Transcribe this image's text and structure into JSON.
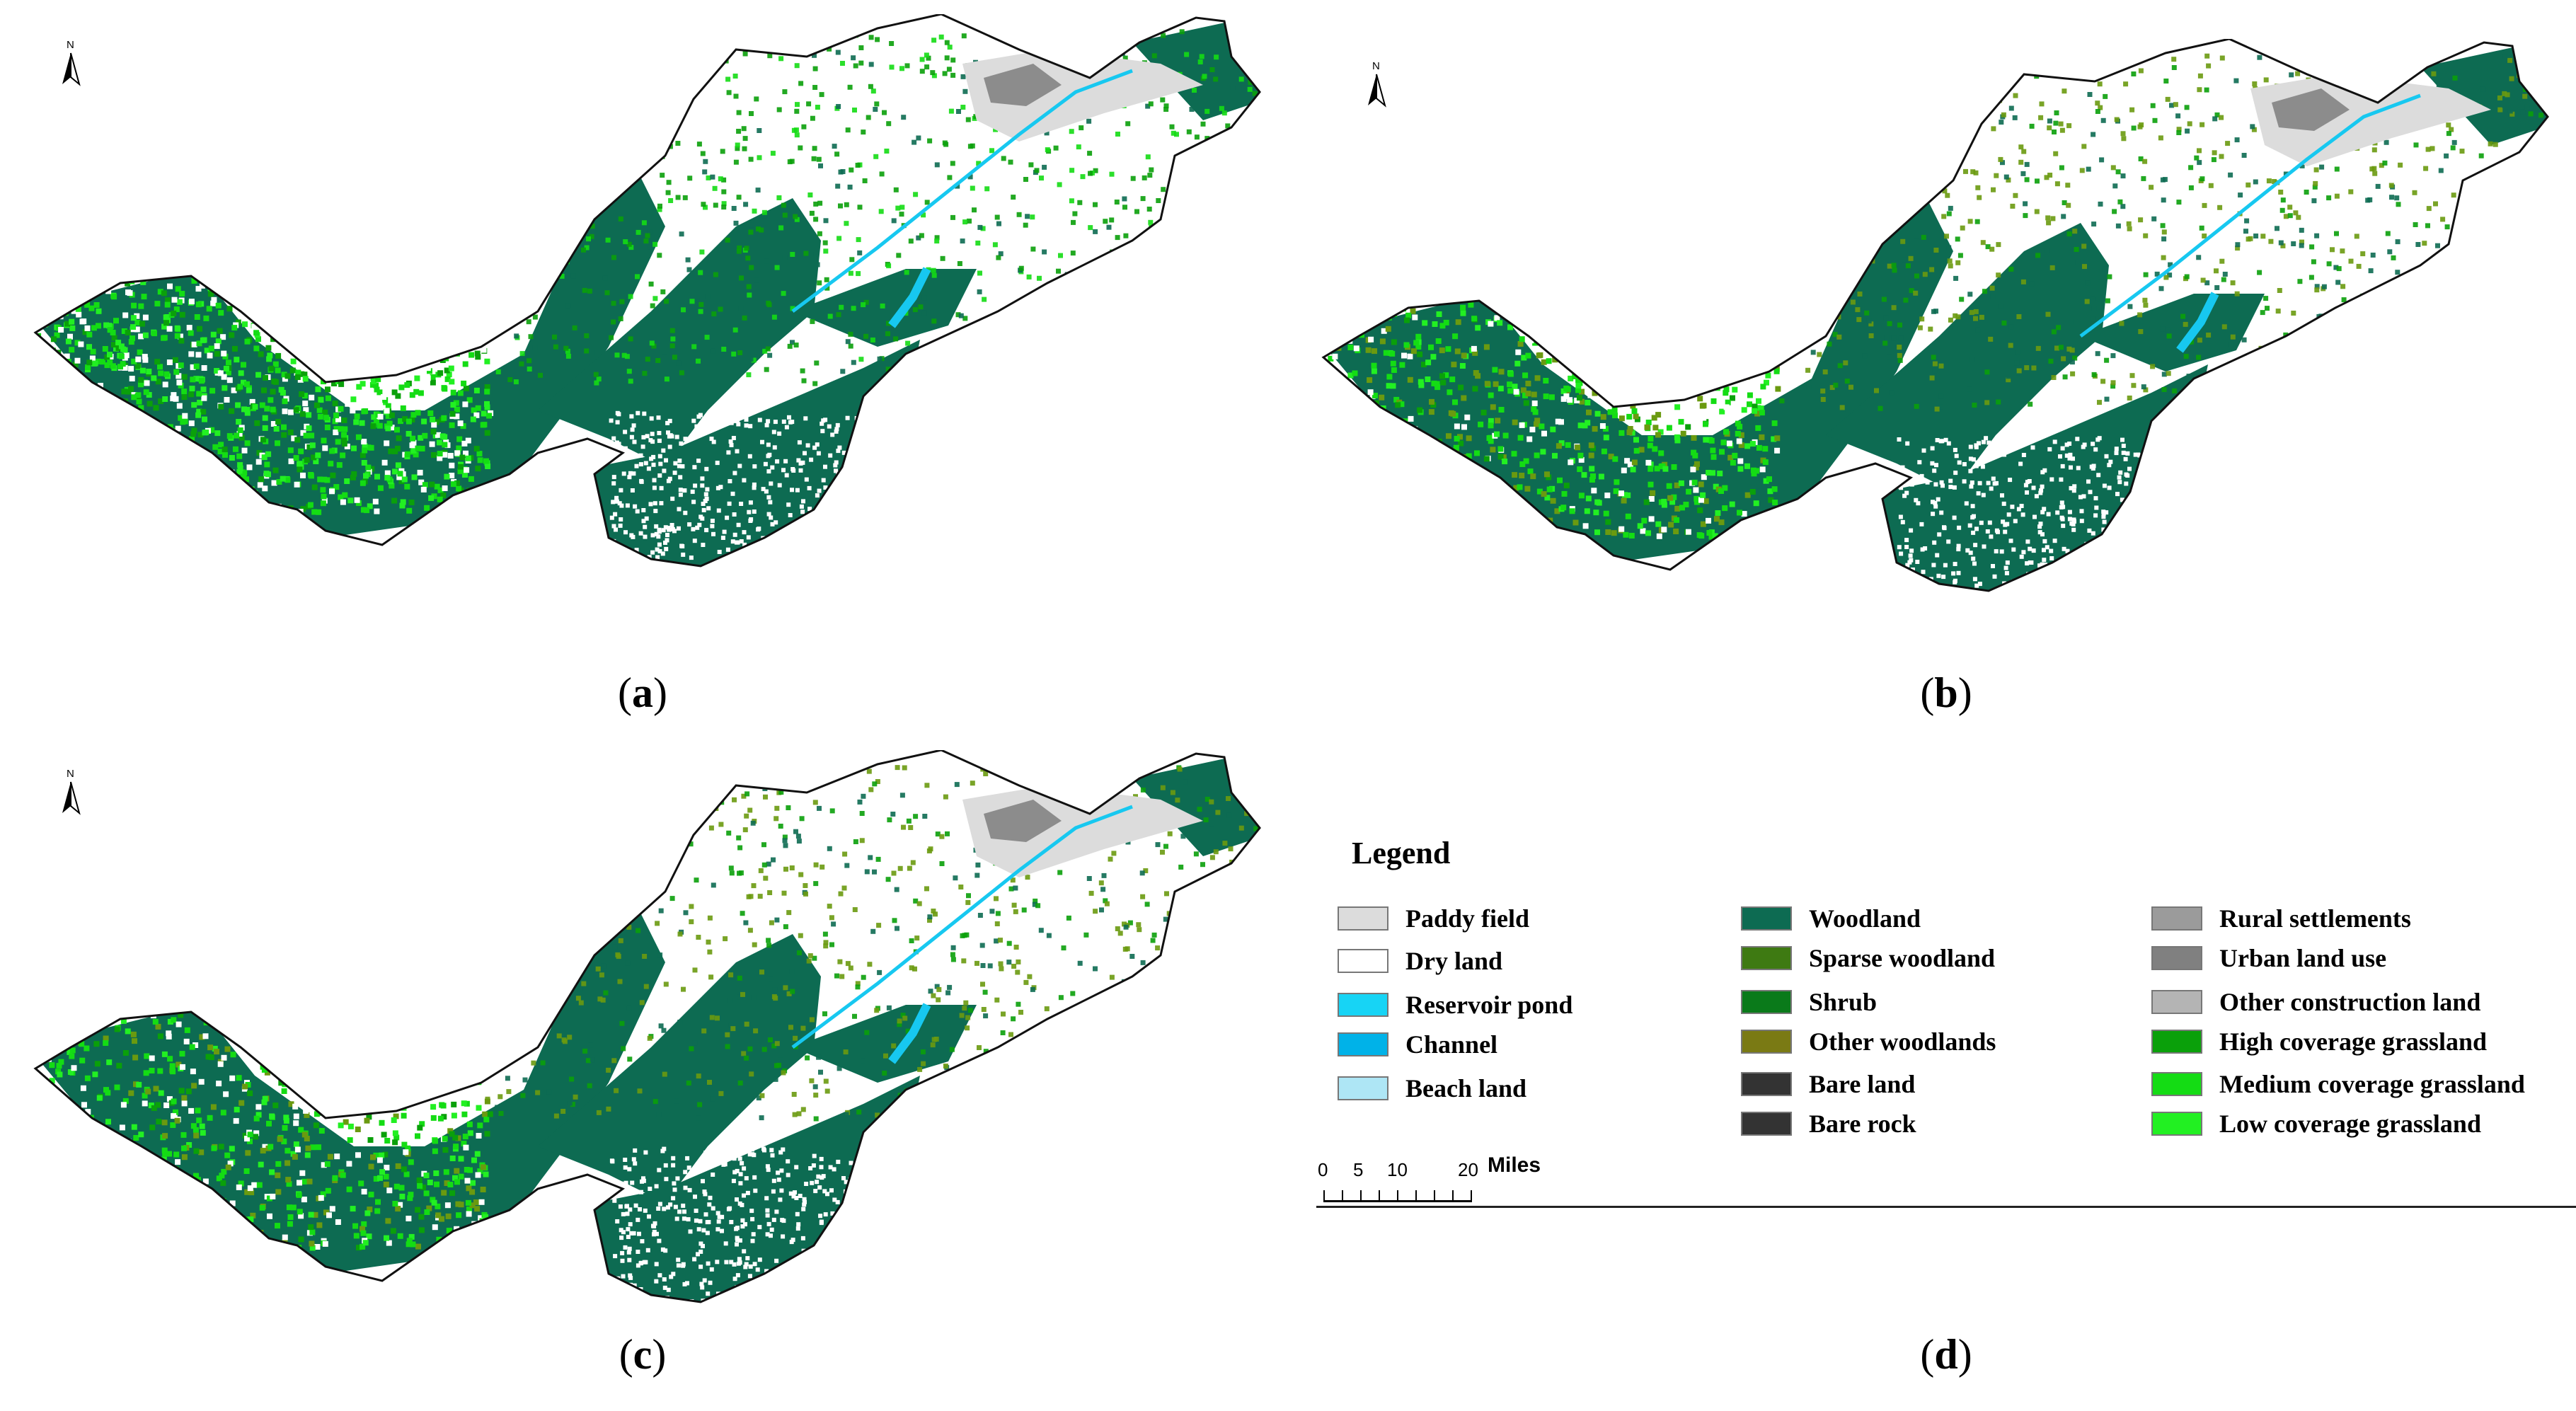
{
  "figure": {
    "panels": [
      {
        "id": "a",
        "caption_letter": "a",
        "variant": "a"
      },
      {
        "id": "b",
        "caption_letter": "b",
        "variant": "b"
      },
      {
        "id": "c",
        "caption_letter": "c",
        "variant": "c"
      }
    ],
    "legend_caption_letter": "d",
    "north_label": "N"
  },
  "legend": {
    "title": "Legend",
    "columns": [
      [
        {
          "label": "Paddy field",
          "color": "#dcdcdc"
        },
        {
          "label": "Dry land",
          "color": "#ffffff"
        },
        {
          "label": "Reservoir pond",
          "color": "#17d4f5"
        },
        {
          "label": "Channel",
          "color": "#00b2e8"
        },
        {
          "label": "Beach land",
          "color": "#aee6f5"
        }
      ],
      [
        {
          "label": "Woodland",
          "color": "#0d6b52"
        },
        {
          "label": "Sparse woodland",
          "color": "#3e7a12"
        },
        {
          "label": "Shrub",
          "color": "#0a7a1a"
        },
        {
          "label": "Other woodlands",
          "color": "#7a7a14"
        },
        {
          "label": "Bare land",
          "color": "#333333"
        },
        {
          "label": "Bare rock",
          "color": "#333333"
        }
      ],
      [
        {
          "label": "Rural settlements",
          "color": "#9b9b9b"
        },
        {
          "label": "Urban land use",
          "color": "#808080"
        },
        {
          "label": "Other construction land",
          "color": "#b4b4b4"
        },
        {
          "label": "High coverage grassland",
          "color": "#0aa00a"
        },
        {
          "label": "Medium coverage grassland",
          "color": "#14dc14"
        },
        {
          "label": "Low coverage grassland",
          "color": "#22f022"
        }
      ]
    ],
    "scalebar": {
      "ticks": [
        "0",
        "5",
        "10",
        "20"
      ],
      "unit": "Miles"
    }
  },
  "colors": {
    "woodland": "#0d6b52",
    "dry_land": "#ffffff",
    "paddy": "#dcdcdc",
    "urban": "#8c8c8c",
    "channel": "#17c8f0",
    "grass_high": "#0aa00a",
    "grass_med": "#14dc14",
    "grass_low": "#22f022",
    "sparse": "#6a9a10"
  }
}
